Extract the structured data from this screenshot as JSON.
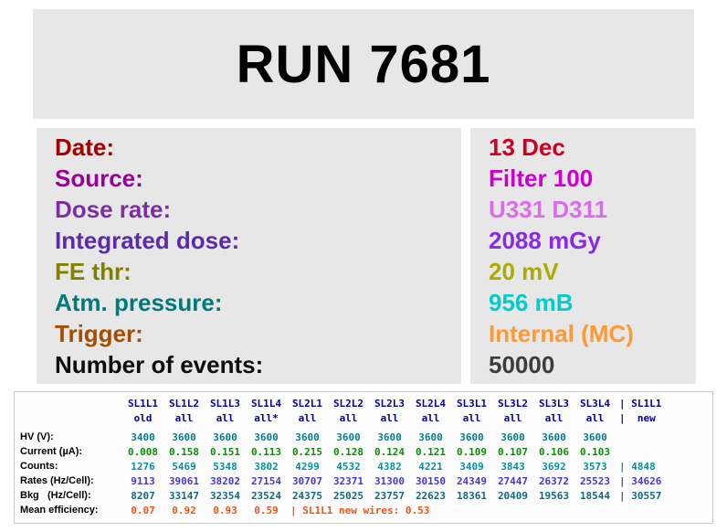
{
  "title": "RUN 7681",
  "info": [
    {
      "key": "date",
      "label": "Date:",
      "value": "13 Dec",
      "label_color": "#a00000",
      "value_color": "#cc0022"
    },
    {
      "key": "source",
      "label": "Source:",
      "value": "Filter 100",
      "label_color": "#990099",
      "value_color": "#cc00cc"
    },
    {
      "key": "dose-rate",
      "label": "Dose rate:",
      "value": "U331 D311",
      "label_color": "#7b2fa0",
      "value_color": "#dd6bf2"
    },
    {
      "key": "integrated-dose",
      "label": "Integrated dose:",
      "value": "2088 mGy",
      "label_color": "#5a2ca8",
      "value_color": "#8a2be2"
    },
    {
      "key": "fe-thr",
      "label": "FE thr:",
      "value": "20 mV",
      "label_color": "#808000",
      "value_color": "#abab00"
    },
    {
      "key": "atm-pressure",
      "label": "Atm. pressure:",
      "value": "956 mB",
      "label_color": "#007a7a",
      "value_color": "#00cccc"
    },
    {
      "key": "trigger",
      "label": "Trigger:",
      "value": "Internal (MC)",
      "label_color": "#a34e00",
      "value_color": "#ff9933"
    },
    {
      "key": "number-of-events",
      "label": "Number of events:",
      "value": "50000",
      "label_color": "#0d0d0d",
      "value_color": "#3c3c3c"
    }
  ],
  "table": {
    "rows": [
      {
        "key": "columns",
        "label": "",
        "color": "#000099",
        "cells": [
          "SL1L1",
          "SL1L2",
          "SL1L3",
          "SL1L4",
          "SL2L1",
          "SL2L2",
          "SL2L3",
          "SL2L4",
          "SL3L1",
          "SL3L2",
          "SL3L3",
          "SL3L4"
        ],
        "extra": "| SL1L1"
      },
      {
        "key": "wire-status",
        "label": "",
        "color": "#000099",
        "cells": [
          "old",
          "all",
          "all",
          "all*",
          "all",
          "all",
          "all",
          "all",
          "all",
          "all",
          "all",
          "all"
        ],
        "extra": "|  new"
      },
      {
        "key": "hv",
        "label": "HV (V):",
        "color": "#007d91",
        "cells": [
          "3400",
          "3600",
          "3600",
          "3600",
          "3600",
          "3600",
          "3600",
          "3600",
          "3600",
          "3600",
          "3600",
          "3600"
        ],
        "extra": ""
      },
      {
        "key": "current",
        "label": "Current (µA):",
        "color": "#089000",
        "cells": [
          "0.008",
          "0.158",
          "0.151",
          "0.113",
          "0.215",
          "0.128",
          "0.124",
          "0.121",
          "0.109",
          "0.107",
          "0.106",
          "0.103"
        ],
        "extra": ""
      },
      {
        "key": "counts",
        "label": "Counts:",
        "color": "#00939d",
        "cells": [
          "1276",
          "5469",
          "5348",
          "3802",
          "4299",
          "4532",
          "4382",
          "4221",
          "3409",
          "3843",
          "3692",
          "3573"
        ],
        "extra": "| 4848"
      },
      {
        "key": "rates",
        "label": "Rates (Hz/Cell):",
        "color": "#4838cc",
        "cells": [
          "9113",
          "39061",
          "38202",
          "27154",
          "30707",
          "32371",
          "31300",
          "30150",
          "24349",
          "27447",
          "26372",
          "25523"
        ],
        "extra": "| 34626"
      },
      {
        "key": "bkg",
        "label": "Bkg   (Hz/Cell):",
        "color": "#0f6b7d",
        "cells": [
          "8207",
          "33147",
          "32354",
          "23524",
          "24375",
          "25025",
          "23757",
          "22623",
          "18361",
          "20409",
          "19563",
          "18544"
        ],
        "extra": "| 30557"
      },
      {
        "key": "mean-efficiency",
        "label": "Mean efficiency:",
        "color": "#ee5511",
        "cells": [
          "0.07",
          "0.92",
          "0.93",
          "0.59"
        ],
        "extra": "| SL1L1 new wires: 0.53"
      }
    ]
  }
}
